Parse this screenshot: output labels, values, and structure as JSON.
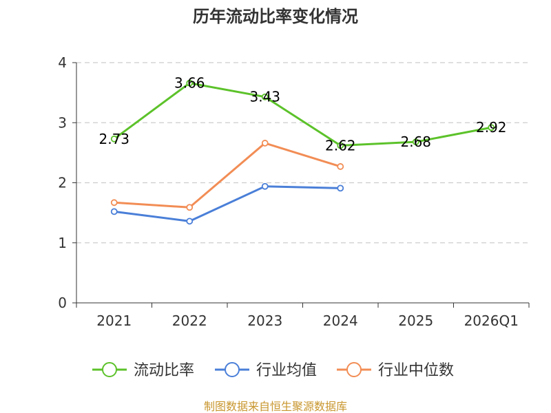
{
  "chart_data": {
    "type": "line",
    "title": "历年流动比率变化情况",
    "categories": [
      "2021",
      "2022",
      "2023",
      "2024",
      "2025",
      "2026Q1"
    ],
    "ylim": [
      0,
      4
    ],
    "yticks": [
      "0",
      "1",
      "2",
      "3",
      "4"
    ],
    "grid": true,
    "legend_position": "bottom-center",
    "series": [
      {
        "name": "流动比率",
        "color": "#5cc22a",
        "values": [
          2.73,
          3.66,
          3.43,
          2.62,
          2.68,
          2.92
        ],
        "labels": [
          "2.73",
          "3.66",
          "3.43",
          "2.62",
          "2.68",
          "2.92"
        ]
      },
      {
        "name": "行业均值",
        "color": "#4a7fd8",
        "values": [
          1.52,
          1.36,
          1.94,
          1.91,
          null,
          null
        ],
        "labels": null
      },
      {
        "name": "行业中位数",
        "color": "#f28d55",
        "values": [
          1.67,
          1.59,
          2.66,
          2.27,
          null,
          null
        ],
        "labels": null
      }
    ],
    "source": "制图数据来自恒生聚源数据库"
  }
}
